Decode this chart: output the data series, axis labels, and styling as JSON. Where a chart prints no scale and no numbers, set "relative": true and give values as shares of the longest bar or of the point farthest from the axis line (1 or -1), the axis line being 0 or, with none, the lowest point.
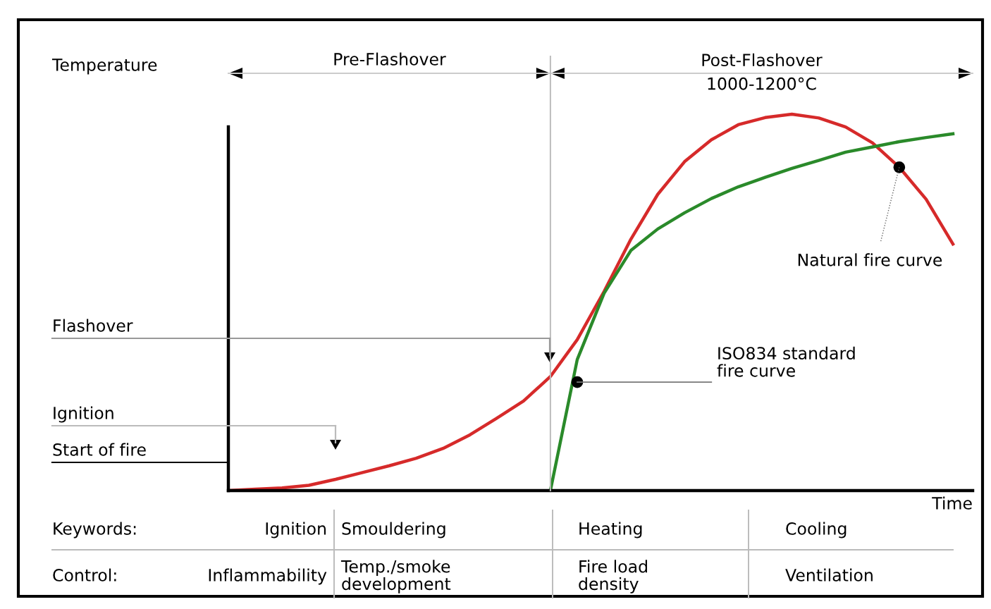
{
  "chart_data": {
    "type": "line",
    "relative": true,
    "xlabel": "Time",
    "line_style": "solid",
    "categories": [
      null,
      null,
      null,
      null,
      null,
      null,
      null,
      null,
      null,
      null,
      null,
      null,
      null,
      null,
      null,
      null,
      null,
      null,
      null,
      null,
      null,
      null,
      null,
      null,
      null,
      null,
      null,
      null
    ],
    "series": [
      {
        "color": "#d62a2a",
        "values": [
          0,
          0.004,
          0.007,
          0.014,
          0.03,
          0.048,
          0.066,
          0.086,
          0.112,
          0.148,
          0.192,
          0.238,
          0.303,
          0.401,
          0.529,
          0.668,
          0.787,
          0.874,
          0.932,
          0.972,
          0.991,
          1,
          0.99,
          0.966,
          0.924,
          0.859,
          0.774,
          0.655
        ]
      },
      {
        "color": "#2a8a2a",
        "values": [
          null,
          null,
          null,
          null,
          null,
          null,
          null,
          null,
          null,
          null,
          null,
          null,
          0,
          0.348,
          0.524,
          0.638,
          0.695,
          0.738,
          0.776,
          0.807,
          0.832,
          0.856,
          0.877,
          0.899,
          0.913,
          0.927,
          0.938,
          0.948
        ]
      }
    ],
    "annotations": [
      "Pre-Flashover",
      "Post-Flashover\n1000-1200°C",
      "Flashover",
      "Ignition",
      "Start of fire",
      "Natural fire curve",
      "ISO834 standard\nfire curve",
      "Keywords:",
      "Ignition",
      "Smouldering",
      "Heating",
      "Cooling",
      "Control:",
      "Inflammability",
      "Temp./smoke\ndevelopment",
      "Fire load\ndensity",
      "Ventilation",
      "Temperature"
    ]
  }
}
